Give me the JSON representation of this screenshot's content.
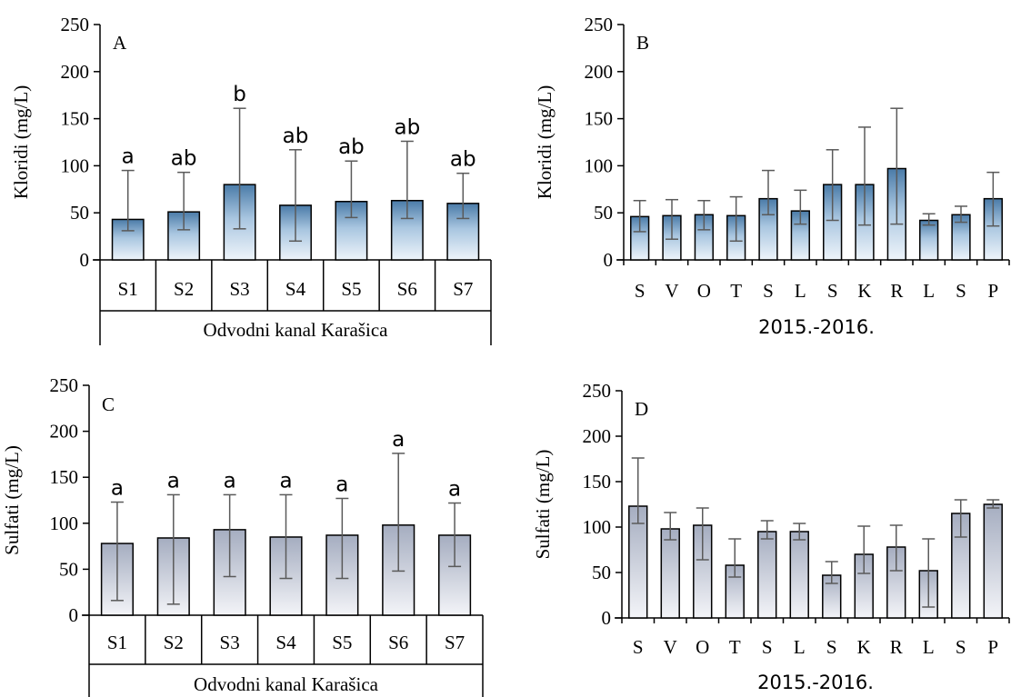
{
  "chart_data": [
    {
      "panel": "A",
      "type": "bar",
      "ylabel": "Kloridi (mg/L)",
      "ylim": [
        0,
        250
      ],
      "yticks": [
        0,
        50,
        100,
        150,
        200,
        250
      ],
      "categories": [
        "S1",
        "S2",
        "S3",
        "S4",
        "S5",
        "S6",
        "S7"
      ],
      "group_label": "Odvodni kanal Karašica",
      "values": [
        43,
        51,
        80,
        58,
        62,
        63,
        60
      ],
      "error_low": [
        31,
        32,
        33,
        20,
        45,
        44,
        44
      ],
      "error_high": [
        95,
        93,
        161,
        117,
        105,
        126,
        92
      ],
      "letters": [
        "a",
        "ab",
        "b",
        "ab",
        "ab",
        "ab",
        "ab"
      ],
      "fill": "blue"
    },
    {
      "panel": "B",
      "type": "bar",
      "ylabel": "Kloridi (mg/L)",
      "ylim": [
        0,
        250
      ],
      "yticks": [
        0,
        50,
        100,
        150,
        200,
        250
      ],
      "categories": [
        "S",
        "V",
        "O",
        "T",
        "S",
        "L",
        "S",
        "K",
        "R",
        "L",
        "S",
        "P"
      ],
      "xlabel": "2015.-2016.",
      "values": [
        46,
        47,
        48,
        47,
        65,
        52,
        80,
        80,
        97,
        42,
        48,
        65
      ],
      "error_low": [
        30,
        22,
        32,
        20,
        48,
        38,
        42,
        37,
        38,
        37,
        40,
        36
      ],
      "error_high": [
        63,
        64,
        63,
        67,
        95,
        74,
        117,
        141,
        161,
        49,
        57,
        93
      ],
      "fill": "blue"
    },
    {
      "panel": "C",
      "type": "bar",
      "ylabel": "Sulfati (mg/L)",
      "ylim": [
        0,
        250
      ],
      "yticks": [
        0,
        50,
        100,
        150,
        200,
        250
      ],
      "categories": [
        "S1",
        "S2",
        "S3",
        "S4",
        "S5",
        "S6",
        "S7"
      ],
      "group_label": "Odvodni kanal Karašica",
      "values": [
        78,
        84,
        93,
        85,
        87,
        98,
        87
      ],
      "error_low": [
        16,
        12,
        42,
        40,
        40,
        48,
        53
      ],
      "error_high": [
        123,
        131,
        131,
        131,
        127,
        176,
        122
      ],
      "letters": [
        "a",
        "a",
        "a",
        "a",
        "a",
        "a",
        "a"
      ],
      "fill": "gray"
    },
    {
      "panel": "D",
      "type": "bar",
      "ylabel": "Sulfati (mg/L)",
      "ylim": [
        0,
        250
      ],
      "yticks": [
        0,
        50,
        100,
        150,
        200,
        250
      ],
      "categories": [
        "S",
        "V",
        "O",
        "T",
        "S",
        "L",
        "S",
        "K",
        "R",
        "L",
        "S",
        "P"
      ],
      "xlabel": "2015.-2016.",
      "values": [
        123,
        98,
        102,
        58,
        95,
        95,
        47,
        70,
        78,
        52,
        115,
        125
      ],
      "error_low": [
        104,
        86,
        64,
        45,
        87,
        86,
        38,
        49,
        52,
        12,
        89,
        121
      ],
      "error_high": [
        176,
        116,
        121,
        87,
        107,
        104,
        62,
        101,
        102,
        87,
        130,
        130
      ],
      "fill": "gray"
    }
  ],
  "colors": {
    "blue_top": "#4a7ba8",
    "blue_mid": "#a9c6e0",
    "blue_bottom": "#eef4fa",
    "gray_top": "#a5adc0",
    "gray_bottom": "#f3f4f8",
    "axis": "#000000",
    "error_bar": "#5a5a5a",
    "bar_edge": "#000000"
  }
}
